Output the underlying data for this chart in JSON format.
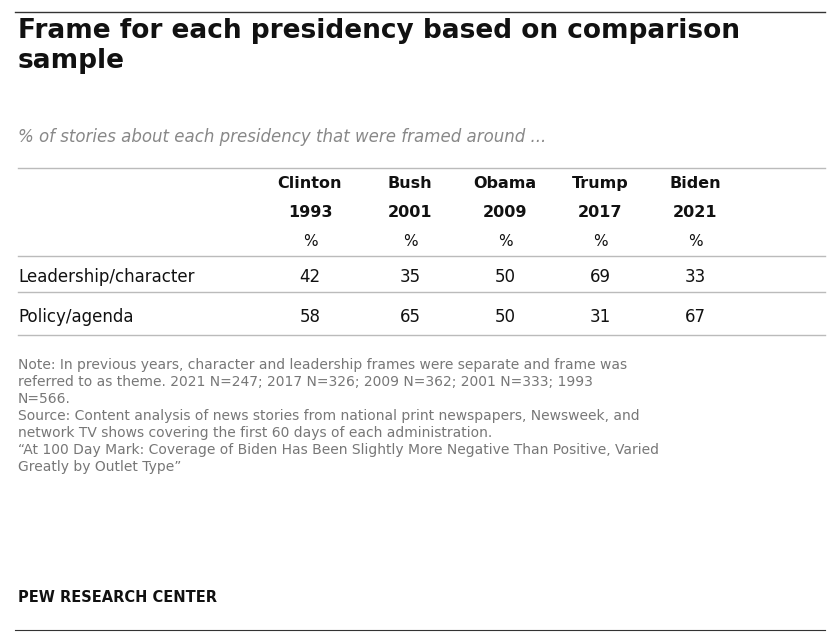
{
  "title": "Frame for each presidency based on comparison\nsample",
  "subtitle": "% of stories about each presidency that were framed around ...",
  "col_headers": [
    "Clinton",
    "Bush",
    "Obama",
    "Trump",
    "Biden"
  ],
  "col_years": [
    "1993",
    "2001",
    "2009",
    "2017",
    "2021"
  ],
  "col_pct": [
    "%",
    "%",
    "%",
    "%",
    "%"
  ],
  "row_labels": [
    "Leadership/character",
    "Policy/agenda"
  ],
  "data": [
    [
      42,
      35,
      50,
      69,
      33
    ],
    [
      58,
      65,
      50,
      31,
      67
    ]
  ],
  "note_lines": [
    "Note: In previous years, character and leadership frames were separate and frame was",
    "referred to as theme. 2021 N=247; 2017 N=326; 2009 N=362; 2001 N=333; 1993",
    "N=566.",
    "Source: Content analysis of news stories from national print newspapers, Newsweek, and",
    "network TV shows covering the first 60 days of each administration.",
    "“At 100 Day Mark: Coverage of Biden Has Been Slightly More Negative Than Positive, Varied",
    "Greatly by Outlet Type”"
  ],
  "footer": "PEW RESEARCH CENTER",
  "title_fontsize": 19,
  "subtitle_fontsize": 12,
  "header_fontsize": 11.5,
  "data_fontsize": 12,
  "note_fontsize": 10,
  "footer_fontsize": 10.5,
  "title_color": "#111111",
  "subtitle_color": "#888888",
  "header_color": "#111111",
  "data_color": "#111111",
  "note_color": "#777777",
  "footer_color": "#111111",
  "row_label_color": "#111111",
  "bg_color": "#ffffff",
  "line_color": "#bbbbbb",
  "top_line_color": "#333333"
}
